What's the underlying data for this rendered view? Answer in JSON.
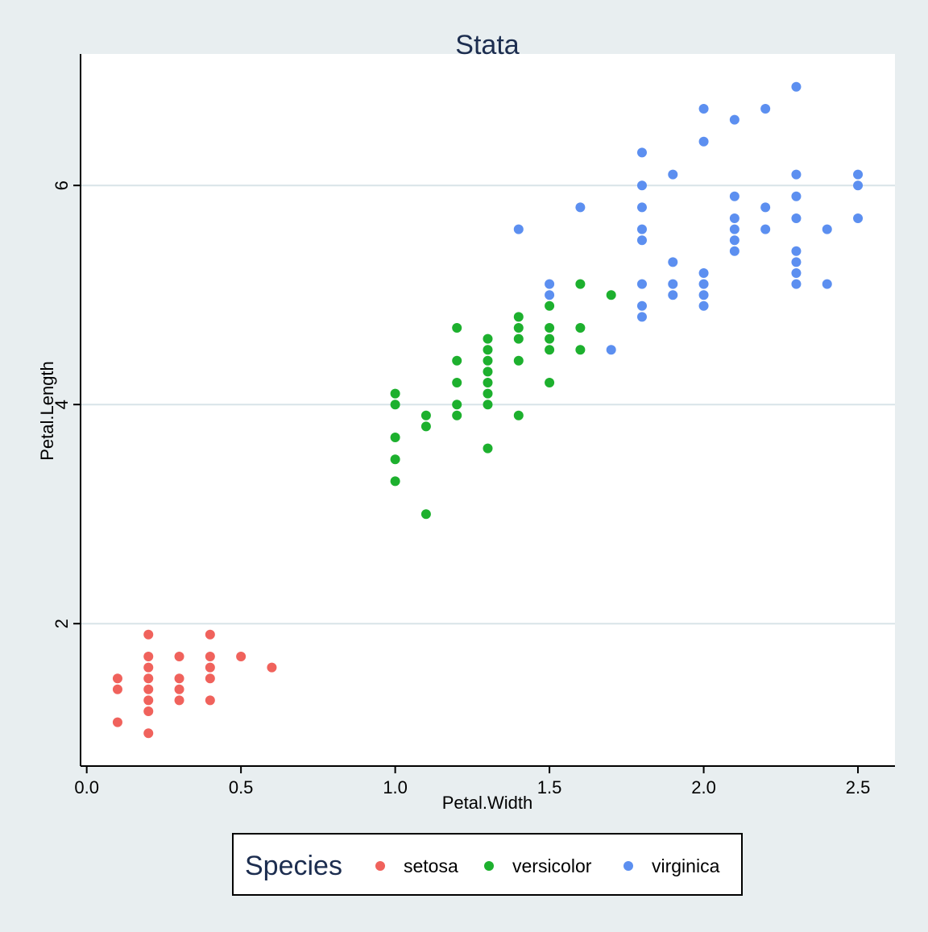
{
  "chart_data": {
    "type": "scatter",
    "title": "Stata",
    "xlabel": "Petal.Width",
    "ylabel": "Petal.Length",
    "xlim": [
      -0.02,
      2.62
    ],
    "ylim": [
      0.7,
      7.2
    ],
    "x_ticks": [
      0.0,
      0.5,
      1.0,
      1.5,
      2.0,
      2.5
    ],
    "x_tick_labels": [
      "0.0",
      "0.5",
      "1.0",
      "1.5",
      "2.0",
      "2.5"
    ],
    "y_ticks": [
      2,
      4,
      6
    ],
    "y_tick_labels": [
      "2",
      "4",
      "6"
    ],
    "grid": "horizontal",
    "legend": {
      "title": "Species",
      "placement": "bottom",
      "entries": [
        "setosa",
        "versicolor",
        "virginica"
      ]
    },
    "colors": {
      "setosa": "#f0625c",
      "versicolor": "#1db02e",
      "virginica": "#5c8ff0",
      "background": "#e8eef0",
      "plot_area": "#ffffff",
      "grid": "#d8e4e8",
      "title": "#1c2d4f"
    },
    "series": [
      {
        "name": "setosa",
        "points": [
          [
            0.1,
            1.1
          ],
          [
            0.1,
            1.4
          ],
          [
            0.1,
            1.5
          ],
          [
            0.2,
            1.0
          ],
          [
            0.2,
            1.2
          ],
          [
            0.2,
            1.3
          ],
          [
            0.2,
            1.4
          ],
          [
            0.2,
            1.5
          ],
          [
            0.2,
            1.6
          ],
          [
            0.2,
            1.7
          ],
          [
            0.2,
            1.9
          ],
          [
            0.3,
            1.3
          ],
          [
            0.3,
            1.4
          ],
          [
            0.3,
            1.5
          ],
          [
            0.3,
            1.7
          ],
          [
            0.4,
            1.3
          ],
          [
            0.4,
            1.5
          ],
          [
            0.4,
            1.6
          ],
          [
            0.4,
            1.7
          ],
          [
            0.4,
            1.9
          ],
          [
            0.5,
            1.7
          ],
          [
            0.6,
            1.6
          ]
        ]
      },
      {
        "name": "versicolor",
        "points": [
          [
            1.0,
            3.3
          ],
          [
            1.0,
            3.5
          ],
          [
            1.0,
            3.7
          ],
          [
            1.0,
            4.0
          ],
          [
            1.0,
            4.1
          ],
          [
            1.1,
            3.0
          ],
          [
            1.1,
            3.8
          ],
          [
            1.1,
            3.9
          ],
          [
            1.2,
            3.9
          ],
          [
            1.2,
            4.0
          ],
          [
            1.2,
            4.2
          ],
          [
            1.2,
            4.4
          ],
          [
            1.2,
            4.7
          ],
          [
            1.3,
            3.6
          ],
          [
            1.3,
            4.0
          ],
          [
            1.3,
            4.1
          ],
          [
            1.3,
            4.2
          ],
          [
            1.3,
            4.3
          ],
          [
            1.3,
            4.4
          ],
          [
            1.3,
            4.5
          ],
          [
            1.3,
            4.6
          ],
          [
            1.4,
            3.9
          ],
          [
            1.4,
            4.4
          ],
          [
            1.4,
            4.6
          ],
          [
            1.4,
            4.7
          ],
          [
            1.4,
            4.8
          ],
          [
            1.5,
            4.2
          ],
          [
            1.5,
            4.5
          ],
          [
            1.5,
            4.6
          ],
          [
            1.5,
            4.7
          ],
          [
            1.5,
            4.9
          ],
          [
            1.6,
            4.5
          ],
          [
            1.6,
            4.7
          ],
          [
            1.6,
            5.1
          ],
          [
            1.7,
            5.0
          ]
        ]
      },
      {
        "name": "virginica",
        "points": [
          [
            1.4,
            5.6
          ],
          [
            1.5,
            5.0
          ],
          [
            1.5,
            5.1
          ],
          [
            1.6,
            5.8
          ],
          [
            1.7,
            4.5
          ],
          [
            1.8,
            4.8
          ],
          [
            1.8,
            4.9
          ],
          [
            1.8,
            5.1
          ],
          [
            1.8,
            5.5
          ],
          [
            1.8,
            5.6
          ],
          [
            1.8,
            5.8
          ],
          [
            1.8,
            6.0
          ],
          [
            1.8,
            6.3
          ],
          [
            1.9,
            5.0
          ],
          [
            1.9,
            5.1
          ],
          [
            1.9,
            5.3
          ],
          [
            1.9,
            6.1
          ],
          [
            2.0,
            4.9
          ],
          [
            2.0,
            5.0
          ],
          [
            2.0,
            5.1
          ],
          [
            2.0,
            5.2
          ],
          [
            2.0,
            6.4
          ],
          [
            2.0,
            6.7
          ],
          [
            2.1,
            5.4
          ],
          [
            2.1,
            5.5
          ],
          [
            2.1,
            5.6
          ],
          [
            2.1,
            5.7
          ],
          [
            2.1,
            5.9
          ],
          [
            2.1,
            6.6
          ],
          [
            2.2,
            5.6
          ],
          [
            2.2,
            5.8
          ],
          [
            2.2,
            6.7
          ],
          [
            2.3,
            5.1
          ],
          [
            2.3,
            5.2
          ],
          [
            2.3,
            5.3
          ],
          [
            2.3,
            5.4
          ],
          [
            2.3,
            5.7
          ],
          [
            2.3,
            5.9
          ],
          [
            2.3,
            6.1
          ],
          [
            2.3,
            6.9
          ],
          [
            2.4,
            5.1
          ],
          [
            2.4,
            5.6
          ],
          [
            2.5,
            5.7
          ],
          [
            2.5,
            6.0
          ],
          [
            2.5,
            6.1
          ]
        ]
      }
    ]
  }
}
